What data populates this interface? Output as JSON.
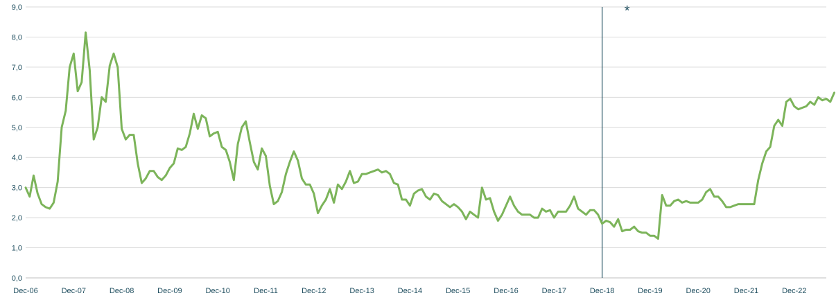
{
  "chart_data": {
    "type": "line",
    "title": "",
    "xlabel": "",
    "ylabel": "",
    "ylim": [
      0,
      9
    ],
    "y_ticks": [
      "0,0",
      "1,0",
      "2,0",
      "3,0",
      "4,0",
      "5,0",
      "6,0",
      "7,0",
      "8,0",
      "9,0"
    ],
    "x_ticks": [
      "Dec-06",
      "Dec-07",
      "Dec-08",
      "Dec-09",
      "Dec-10",
      "Dec-11",
      "Dec-12",
      "Dec-13",
      "Dec-14",
      "Dec-15",
      "Dec-16",
      "Dec-17",
      "Dec-18",
      "Dec-19",
      "Dec-20",
      "Dec-21",
      "Dec-22"
    ],
    "x_start": "Dec-06",
    "grid": "horizontal",
    "legend": "none",
    "line_color": "#7cb45a",
    "marker_line": {
      "at": "Dec-18",
      "color": "#1f4e5f"
    },
    "annotation": "*",
    "series": [
      {
        "values": [
          3.0,
          2.7,
          3.4,
          2.8,
          2.45,
          2.35,
          2.3,
          2.5,
          3.2,
          5.0,
          5.55,
          7.0,
          7.45,
          6.2,
          6.5,
          8.15,
          6.9,
          4.6,
          5.0,
          6.0,
          5.85,
          7.05,
          7.45,
          7.0,
          4.95,
          4.6,
          4.75,
          4.75,
          3.8,
          3.15,
          3.3,
          3.55,
          3.55,
          3.35,
          3.25,
          3.4,
          3.65,
          3.8,
          4.3,
          4.25,
          4.35,
          4.8,
          5.45,
          4.95,
          5.4,
          5.3,
          4.7,
          4.8,
          4.85,
          4.35,
          4.25,
          3.85,
          3.25,
          4.45,
          5.0,
          5.2,
          4.5,
          3.85,
          3.6,
          4.3,
          4.05,
          3.05,
          2.45,
          2.55,
          2.85,
          3.45,
          3.85,
          4.2,
          3.9,
          3.3,
          3.1,
          3.1,
          2.8,
          2.15,
          2.4,
          2.6,
          2.95,
          2.5,
          3.1,
          2.95,
          3.2,
          3.55,
          3.15,
          3.2,
          3.45,
          3.45,
          3.5,
          3.55,
          3.6,
          3.5,
          3.55,
          3.45,
          3.15,
          3.1,
          2.6,
          2.6,
          2.4,
          2.8,
          2.9,
          2.95,
          2.7,
          2.6,
          2.8,
          2.75,
          2.55,
          2.45,
          2.35,
          2.45,
          2.35,
          2.2,
          1.95,
          2.2,
          2.1,
          2.0,
          3.0,
          2.6,
          2.65,
          2.2,
          1.9,
          2.1,
          2.4,
          2.7,
          2.4,
          2.2,
          2.1,
          2.1,
          2.1,
          2.0,
          2.0,
          2.3,
          2.2,
          2.25,
          2.0,
          2.2,
          2.2,
          2.2,
          2.4,
          2.7,
          2.3,
          2.2,
          2.1,
          2.25,
          2.25,
          2.1,
          1.8,
          1.9,
          1.85,
          1.7,
          1.95,
          1.55,
          1.6,
          1.6,
          1.7,
          1.55,
          1.5,
          1.5,
          1.4,
          1.4,
          1.3,
          2.75,
          2.4,
          2.4,
          2.55,
          2.6,
          2.5,
          2.55,
          2.5,
          2.5,
          2.5,
          2.6,
          2.85,
          2.95,
          2.7,
          2.7,
          2.55,
          2.35,
          2.35,
          2.4,
          2.45,
          2.45,
          2.45,
          2.45,
          2.45,
          3.25,
          3.8,
          4.2,
          4.35,
          5.05,
          5.25,
          5.05,
          5.85,
          5.95,
          5.7,
          5.6,
          5.65,
          5.7,
          5.85,
          5.75,
          6.0,
          5.9,
          5.95,
          5.85,
          6.15
        ]
      }
    ]
  }
}
